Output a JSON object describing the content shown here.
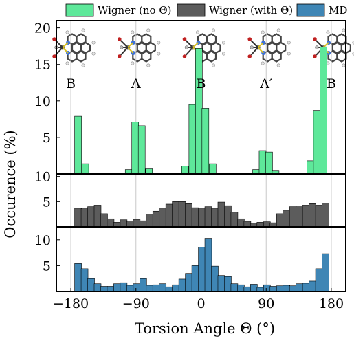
{
  "legend": [
    {
      "label": "Wigner (no Θ)",
      "color": "#5ee89a"
    },
    {
      "label": "Wigner (with Θ)",
      "color": "#5c5c5c"
    },
    {
      "label": "MD",
      "color": "#3f86b5"
    }
  ],
  "structure_labels": [
    {
      "text": "B",
      "x": -180
    },
    {
      "text": "A",
      "x": -90
    },
    {
      "text": "B",
      "x": 0
    },
    {
      "text": "A′",
      "x": 90
    },
    {
      "text": "B",
      "x": 180
    }
  ],
  "xlabel": "Torsion Angle Θ (°)",
  "ylabel": "Occurence (%)",
  "x_ticks": [
    {
      "value": -180,
      "label": "−180"
    },
    {
      "value": -90,
      "label": "−90"
    },
    {
      "value": 0,
      "label": "0"
    },
    {
      "value": 90,
      "label": "90"
    },
    {
      "value": 180,
      "label": "180"
    }
  ],
  "chart_data": [
    {
      "type": "bar",
      "name": "Wigner (no Θ)",
      "color": "#5ee89a",
      "xlim": [
        -200,
        200
      ],
      "ylim": [
        0,
        21
      ],
      "y_ticks": [
        5,
        10,
        15,
        20
      ],
      "bin_width": 9.5,
      "bins": [
        {
          "x": -170,
          "y": 7.9
        },
        {
          "x": -160,
          "y": 1.4
        },
        {
          "x": -100,
          "y": 0.6
        },
        {
          "x": -91,
          "y": 7.1
        },
        {
          "x": -82,
          "y": 6.6
        },
        {
          "x": -72,
          "y": 0.7
        },
        {
          "x": -22,
          "y": 1.1
        },
        {
          "x": -12,
          "y": 9.5
        },
        {
          "x": -3,
          "y": 17.2
        },
        {
          "x": 6,
          "y": 9.0
        },
        {
          "x": 16,
          "y": 1.4
        },
        {
          "x": 76,
          "y": 0.6
        },
        {
          "x": 85,
          "y": 3.2
        },
        {
          "x": 94,
          "y": 3.0
        },
        {
          "x": 103,
          "y": 0.4
        },
        {
          "x": 151,
          "y": 1.8
        },
        {
          "x": 160,
          "y": 8.7
        },
        {
          "x": 169,
          "y": 17.4
        }
      ]
    },
    {
      "type": "bar",
      "name": "Wigner (with Θ)",
      "color": "#5c5c5c",
      "xlim": [
        -200,
        200
      ],
      "ylim": [
        0,
        10.5
      ],
      "y_ticks": [
        5,
        10
      ],
      "bin_width": 9.5,
      "bins": [
        {
          "x": -170,
          "y": 3.7
        },
        {
          "x": -161,
          "y": 3.6
        },
        {
          "x": -152,
          "y": 4.0
        },
        {
          "x": -143,
          "y": 4.3
        },
        {
          "x": -134,
          "y": 2.6
        },
        {
          "x": -125,
          "y": 1.6
        },
        {
          "x": -116,
          "y": 0.9
        },
        {
          "x": -107,
          "y": 1.4
        },
        {
          "x": -98,
          "y": 1.0
        },
        {
          "x": -89,
          "y": 1.5
        },
        {
          "x": -80,
          "y": 1.2
        },
        {
          "x": -71,
          "y": 2.5
        },
        {
          "x": -62,
          "y": 3.1
        },
        {
          "x": -53,
          "y": 3.6
        },
        {
          "x": -44,
          "y": 4.5
        },
        {
          "x": -35,
          "y": 5.0
        },
        {
          "x": -26,
          "y": 5.0
        },
        {
          "x": -17,
          "y": 4.6
        },
        {
          "x": -8,
          "y": 3.8
        },
        {
          "x": 1,
          "y": 3.6
        },
        {
          "x": 10,
          "y": 4.0
        },
        {
          "x": 19,
          "y": 3.7
        },
        {
          "x": 28,
          "y": 4.9
        },
        {
          "x": 37,
          "y": 4.2
        },
        {
          "x": 46,
          "y": 2.9
        },
        {
          "x": 55,
          "y": 1.6
        },
        {
          "x": 64,
          "y": 1.1
        },
        {
          "x": 73,
          "y": 0.6
        },
        {
          "x": 82,
          "y": 0.9
        },
        {
          "x": 91,
          "y": 1.0
        },
        {
          "x": 100,
          "y": 0.8
        },
        {
          "x": 109,
          "y": 2.6
        },
        {
          "x": 118,
          "y": 3.2
        },
        {
          "x": 127,
          "y": 4.0
        },
        {
          "x": 136,
          "y": 4.0
        },
        {
          "x": 145,
          "y": 4.3
        },
        {
          "x": 154,
          "y": 4.6
        },
        {
          "x": 163,
          "y": 4.3
        },
        {
          "x": 172,
          "y": 4.7
        }
      ]
    },
    {
      "type": "bar",
      "name": "MD",
      "color": "#3f86b5",
      "xlim": [
        -200,
        200
      ],
      "ylim": [
        0,
        12.5
      ],
      "y_ticks": [
        5,
        10
      ],
      "bin_width": 9.5,
      "bins": [
        {
          "x": -170,
          "y": 5.4
        },
        {
          "x": -161,
          "y": 4.4
        },
        {
          "x": -152,
          "y": 2.5
        },
        {
          "x": -143,
          "y": 1.5
        },
        {
          "x": -134,
          "y": 1.0
        },
        {
          "x": -125,
          "y": 1.0
        },
        {
          "x": -116,
          "y": 1.5
        },
        {
          "x": -107,
          "y": 1.7
        },
        {
          "x": -98,
          "y": 1.2
        },
        {
          "x": -89,
          "y": 1.5
        },
        {
          "x": -80,
          "y": 2.5
        },
        {
          "x": -71,
          "y": 1.2
        },
        {
          "x": -62,
          "y": 1.3
        },
        {
          "x": -53,
          "y": 1.5
        },
        {
          "x": -44,
          "y": 0.9
        },
        {
          "x": -35,
          "y": 1.3
        },
        {
          "x": -26,
          "y": 2.4
        },
        {
          "x": -17,
          "y": 3.5
        },
        {
          "x": -8,
          "y": 5.0
        },
        {
          "x": 1,
          "y": 8.6
        },
        {
          "x": 10,
          "y": 10.3
        },
        {
          "x": 19,
          "y": 4.9
        },
        {
          "x": 28,
          "y": 3.1
        },
        {
          "x": 37,
          "y": 2.9
        },
        {
          "x": 46,
          "y": 1.5
        },
        {
          "x": 55,
          "y": 1.3
        },
        {
          "x": 64,
          "y": 0.9
        },
        {
          "x": 73,
          "y": 1.4
        },
        {
          "x": 82,
          "y": 0.8
        },
        {
          "x": 91,
          "y": 1.3
        },
        {
          "x": 100,
          "y": 1.0
        },
        {
          "x": 109,
          "y": 1.1
        },
        {
          "x": 118,
          "y": 1.2
        },
        {
          "x": 127,
          "y": 1.1
        },
        {
          "x": 136,
          "y": 1.5
        },
        {
          "x": 145,
          "y": 1.6
        },
        {
          "x": 154,
          "y": 2.0
        },
        {
          "x": 163,
          "y": 4.4
        },
        {
          "x": 172,
          "y": 7.3
        }
      ]
    }
  ]
}
